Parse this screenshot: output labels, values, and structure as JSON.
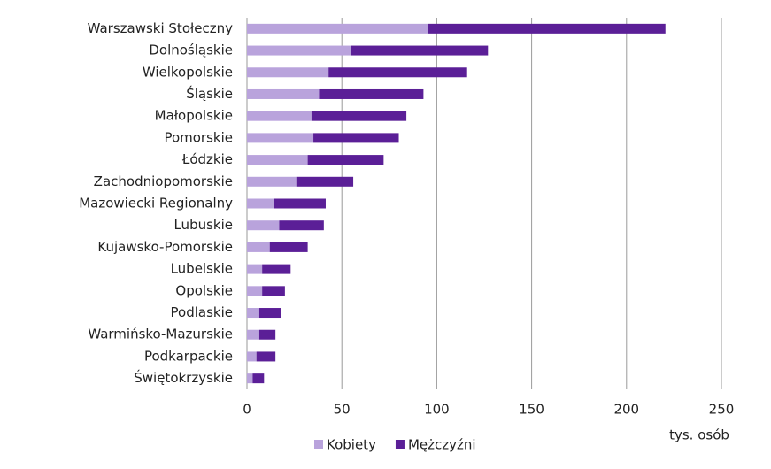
{
  "chart_data": {
    "type": "stacked-barh",
    "categories": [
      "Warszawski Stołeczny",
      "Dolnośląskie",
      "Wielkopolskie",
      "Śląskie",
      "Małopolskie",
      "Pomorskie",
      "Łódzkie",
      "Zachodniopomorskie",
      "Mazowiecki Regionalny",
      "Lubuskie",
      "Kujawsko-Pomorskie",
      "Lubelskie",
      "Opolskie",
      "Podlaskie",
      "Warmińsko-Mazurskie",
      "Podkarpackie",
      "Świętokrzyskie"
    ],
    "series": [
      {
        "name": "Kobiety",
        "color": "#b9a3dc",
        "values": [
          95.5,
          55,
          43,
          38,
          34,
          35,
          32,
          26,
          14,
          17,
          12,
          8,
          8,
          6.5,
          6.5,
          5,
          3
        ]
      },
      {
        "name": "Mężczyźni",
        "color": "#5b1f97",
        "values": [
          125,
          72,
          73,
          55,
          50,
          45,
          40,
          30,
          27.5,
          23.5,
          20,
          15,
          12,
          11.5,
          8.5,
          10,
          6
        ]
      }
    ],
    "xlabel": "tys. osób",
    "xlim": [
      0,
      250
    ],
    "xticks": [
      0,
      50,
      100,
      150,
      200,
      250
    ],
    "grid": true,
    "legend": "bottom"
  }
}
